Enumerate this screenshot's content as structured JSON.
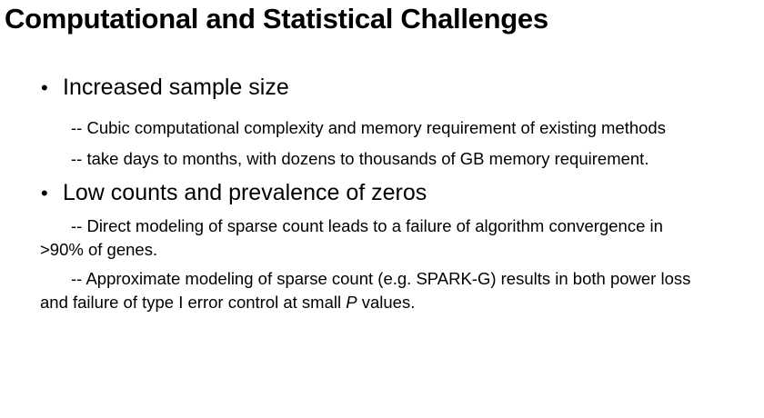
{
  "slide": {
    "title": "Computational and Statistical Challenges",
    "bullets": [
      {
        "label": "Increased sample size",
        "subs": [
          "-- Cubic computational complexity and memory requirement of existing methods",
          "-- take days to months, with dozens to thousands of GB memory requirement."
        ]
      },
      {
        "label": "Low counts and prevalence of zeros",
        "paras": [
          {
            "line1": "-- Direct modeling of sparse count leads to a failure of algorithm convergence in",
            "line2": ">90% of genes."
          },
          {
            "line1": "-- Approximate modeling of sparse count (e.g. SPARK-G) results in both power loss",
            "line2_before": "and failure of type I error control at small ",
            "line2_italic": "P",
            "line2_after": " values."
          }
        ]
      }
    ],
    "bullet_glyph": "•"
  }
}
